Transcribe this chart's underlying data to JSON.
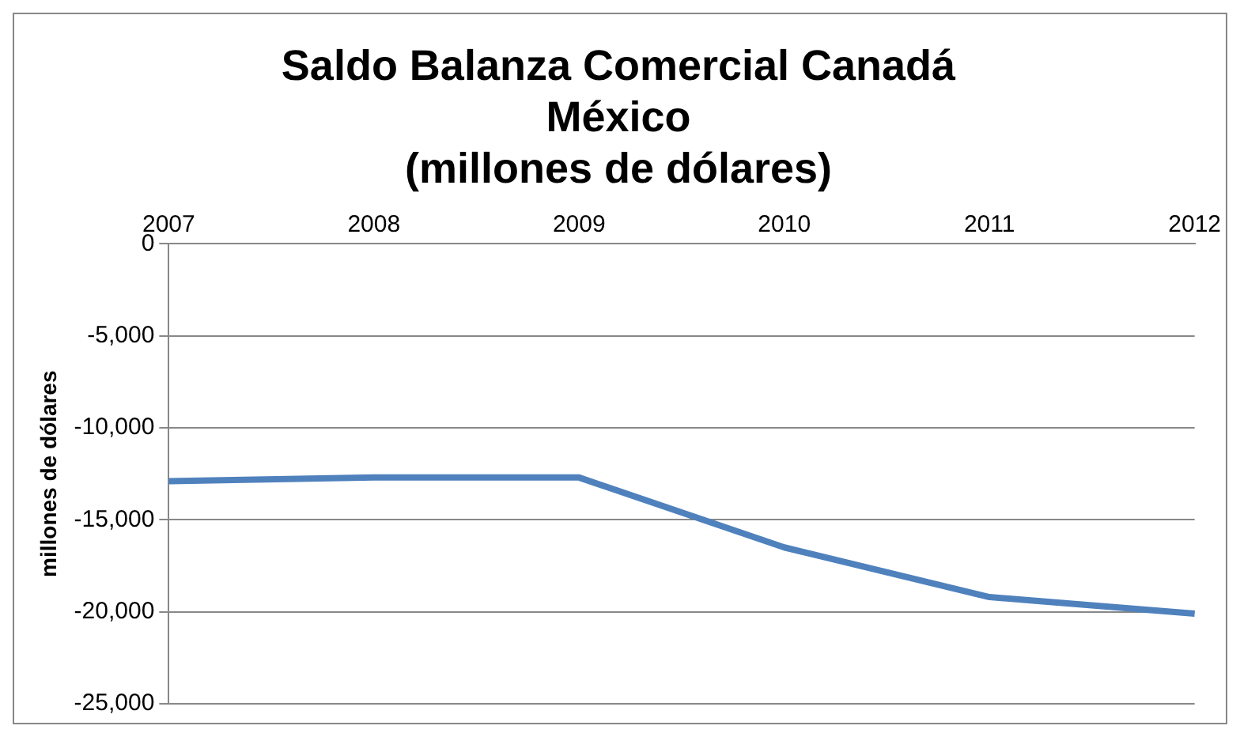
{
  "chart_data": {
    "type": "line",
    "title": "Saldo Balanza Comercial Canadá\nMéxico\n(millones de dólares)",
    "ylabel": "millones de dólares",
    "categories": [
      "2007",
      "2008",
      "2009",
      "2010",
      "2011",
      "2012"
    ],
    "series": [
      {
        "color": "#4f81bd",
        "values": [
          -12900,
          -12700,
          -12700,
          -16500,
          -19200,
          -20100
        ]
      }
    ],
    "ylim": [
      -25000,
      0
    ],
    "yticks": [
      {
        "value": -25000,
        "label": "-25,000"
      },
      {
        "value": -20000,
        "label": "-20,000"
      },
      {
        "value": -15000,
        "label": "-15,000"
      },
      {
        "value": -10000,
        "label": "-10,000"
      },
      {
        "value": -5000,
        "label": "-5,000"
      },
      0
    ],
    "grid": "y",
    "legend": false,
    "marker": "none",
    "line_style": "solid"
  }
}
